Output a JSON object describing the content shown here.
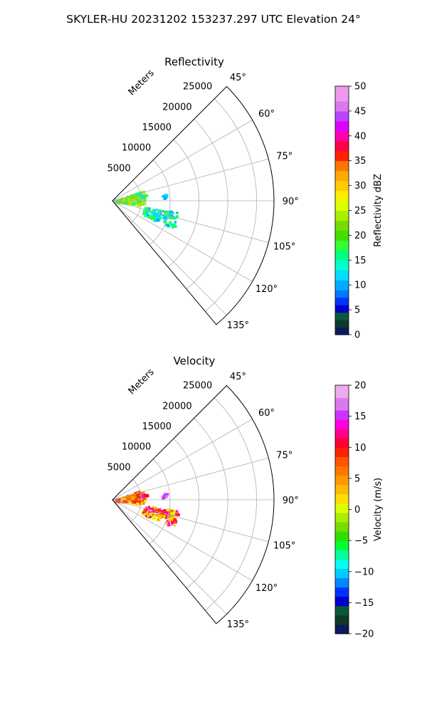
{
  "figure": {
    "suptitle": "SKYLER-HU  20231202  153237.297 UTC Elevation 24°"
  },
  "chart_data": [
    {
      "type": "polar-sector",
      "title": "Reflectivity",
      "range_label": "Meters",
      "theta_range_deg": [
        45,
        140
      ],
      "r_max": 28000,
      "r_ticks": [
        5000,
        10000,
        15000,
        20000,
        25000
      ],
      "r_tick_labels": [
        "5000",
        "10000",
        "15000",
        "20000",
        "25000"
      ],
      "theta_ticks": [
        45,
        60,
        75,
        90,
        105,
        120,
        135
      ],
      "theta_tick_labels": [
        "45°",
        "60°",
        "75°",
        "90°",
        "105°",
        "120°",
        "135°"
      ],
      "grid": true,
      "colorbar": {
        "label": "Reflectivity dBZ",
        "min": 0,
        "max": 50,
        "ticks": [
          0,
          5,
          10,
          15,
          20,
          25,
          30,
          35,
          40,
          45,
          50
        ],
        "tick_labels": [
          "0",
          "5",
          "10",
          "15",
          "20",
          "25",
          "30",
          "35",
          "40",
          "45",
          "50"
        ],
        "stops": [
          {
            "v": 0,
            "c": "#0a1a5c"
          },
          {
            "v": 1.5,
            "c": "#0f3a2a"
          },
          {
            "v": 3,
            "c": "#0a5a3a"
          },
          {
            "v": 4.5,
            "c": "#0000cc"
          },
          {
            "v": 6,
            "c": "#0033ff"
          },
          {
            "v": 7.5,
            "c": "#0077ff"
          },
          {
            "v": 9,
            "c": "#00aaff"
          },
          {
            "v": 11,
            "c": "#00ddff"
          },
          {
            "v": 13,
            "c": "#00ffcc"
          },
          {
            "v": 15,
            "c": "#00ff88"
          },
          {
            "v": 17,
            "c": "#33ff33"
          },
          {
            "v": 19,
            "c": "#44dd00"
          },
          {
            "v": 21,
            "c": "#77dd00"
          },
          {
            "v": 23,
            "c": "#aaee00"
          },
          {
            "v": 25,
            "c": "#ddff00"
          },
          {
            "v": 27,
            "c": "#ffee00"
          },
          {
            "v": 29,
            "c": "#ffcc00"
          },
          {
            "v": 31,
            "c": "#ffaa00"
          },
          {
            "v": 33,
            "c": "#ff7700"
          },
          {
            "v": 35,
            "c": "#ff2200"
          },
          {
            "v": 37,
            "c": "#ff0044"
          },
          {
            "v": 39,
            "c": "#ff00aa"
          },
          {
            "v": 41,
            "c": "#dd00ff"
          },
          {
            "v": 43,
            "c": "#bb44ff"
          },
          {
            "v": 45,
            "c": "#dd77ee"
          },
          {
            "v": 47,
            "c": "#ee99ee"
          },
          {
            "v": 50,
            "c": "#ffe8ff"
          }
        ]
      },
      "echo_regions": [
        {
          "theta_deg": [
            70,
            97
          ],
          "range_m": [
            0,
            5500
          ],
          "values": [
            16,
            21,
            23
          ]
        },
        {
          "theta_deg": [
            78,
            82
          ],
          "range_m": [
            5000,
            6000
          ],
          "values": [
            12,
            18
          ]
        },
        {
          "theta_deg": [
            82,
            86
          ],
          "range_m": [
            8500,
            9500
          ],
          "values": [
            9,
            12
          ]
        },
        {
          "theta_deg": [
            99,
            114
          ],
          "range_m": [
            5500,
            11500
          ],
          "values": [
            9,
            11,
            13,
            15,
            18
          ]
        }
      ]
    },
    {
      "type": "polar-sector",
      "title": "Velocity",
      "range_label": "Meters",
      "theta_range_deg": [
        45,
        140
      ],
      "r_max": 28000,
      "r_ticks": [
        5000,
        10000,
        15000,
        20000,
        25000
      ],
      "r_tick_labels": [
        "5000",
        "10000",
        "15000",
        "20000",
        "25000"
      ],
      "theta_ticks": [
        45,
        60,
        75,
        90,
        105,
        120,
        135
      ],
      "theta_tick_labels": [
        "45°",
        "60°",
        "75°",
        "90°",
        "105°",
        "120°",
        "135°"
      ],
      "grid": true,
      "colorbar": {
        "label": "Velocity (m/s)",
        "min": -20,
        "max": 20,
        "ticks": [
          -20,
          -15,
          -10,
          -5,
          0,
          5,
          10,
          15,
          20
        ],
        "tick_labels": [
          "−20",
          "−15",
          "−10",
          "−5",
          "0",
          "5",
          "10",
          "15",
          "20"
        ],
        "stops": [
          {
            "v": -20,
            "c": "#0a1a5c"
          },
          {
            "v": -18.5,
            "c": "#0f3a2a"
          },
          {
            "v": -17,
            "c": "#0a5a3a"
          },
          {
            "v": -15.5,
            "c": "#0000cc"
          },
          {
            "v": -14,
            "c": "#0033ff"
          },
          {
            "v": -12.5,
            "c": "#0088ff"
          },
          {
            "v": -11,
            "c": "#00ccff"
          },
          {
            "v": -9.5,
            "c": "#00ffee"
          },
          {
            "v": -8,
            "c": "#00ff99"
          },
          {
            "v": -6.5,
            "c": "#00ff33"
          },
          {
            "v": -5,
            "c": "#33dd00"
          },
          {
            "v": -3.5,
            "c": "#77dd00"
          },
          {
            "v": -2,
            "c": "#aaee00"
          },
          {
            "v": -0.5,
            "c": "#ddff00"
          },
          {
            "v": 1,
            "c": "#ffdd00"
          },
          {
            "v": 2.5,
            "c": "#ffbb00"
          },
          {
            "v": 4,
            "c": "#ff9900"
          },
          {
            "v": 5.5,
            "c": "#ff7700"
          },
          {
            "v": 7,
            "c": "#ff5500"
          },
          {
            "v": 8.5,
            "c": "#ff2200"
          },
          {
            "v": 10,
            "c": "#ff0033"
          },
          {
            "v": 11.5,
            "c": "#ff0088"
          },
          {
            "v": 13,
            "c": "#ff00dd"
          },
          {
            "v": 14.5,
            "c": "#cc33ff"
          },
          {
            "v": 16,
            "c": "#dd77ee"
          },
          {
            "v": 18,
            "c": "#eeaaee"
          },
          {
            "v": 20,
            "c": "#ffe8ff"
          }
        ]
      },
      "echo_regions": [
        {
          "theta_deg": [
            70,
            97
          ],
          "range_m": [
            0,
            5500
          ],
          "values": [
            2,
            6,
            9
          ]
        },
        {
          "theta_deg": [
            78,
            82
          ],
          "range_m": [
            5000,
            6000
          ],
          "values": [
            11,
            13
          ]
        },
        {
          "theta_deg": [
            82,
            86
          ],
          "range_m": [
            8500,
            9500
          ],
          "values": [
            15,
            16
          ]
        },
        {
          "theta_deg": [
            99,
            114
          ],
          "range_m": [
            5500,
            11500
          ],
          "values": [
            0,
            3,
            6,
            9,
            12,
            14
          ]
        }
      ]
    }
  ]
}
